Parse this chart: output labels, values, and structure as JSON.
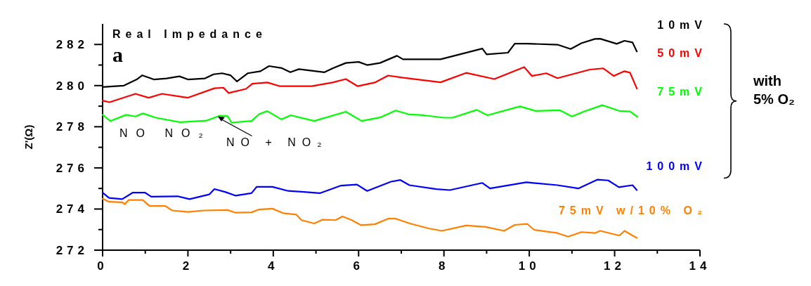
{
  "chart_data": {
    "type": "line",
    "title": "Real Impedance",
    "ylabel": "Z'(Ω)",
    "xlim": [
      0,
      14
    ],
    "xticks": [
      0,
      {
        "value": 1,
        "label": null
      },
      2,
      {
        "value": 3,
        "label": null
      },
      4,
      {
        "value": 5,
        "label": null
      },
      6,
      {
        "value": 7,
        "label": null
      },
      8,
      {
        "value": 9,
        "label": null
      },
      10,
      {
        "value": 11,
        "label": null
      },
      12,
      {
        "value": 13,
        "label": null
      },
      14
    ],
    "ylim": [
      272,
      283
    ],
    "yticks": [
      272,
      {
        "value": 273,
        "label": null
      },
      274,
      {
        "value": 275,
        "label": null
      },
      276,
      {
        "value": 277,
        "label": null
      },
      278,
      {
        "value": 279,
        "label": null
      },
      280,
      {
        "value": 281,
        "label": null
      },
      282
    ],
    "grid": false,
    "marker": "none",
    "line_style": "solid",
    "annotations": [
      "a",
      {
        "text": "NO NO₂"
      },
      {
        "text": "NO + NO₂",
        "x": 2.7,
        "y": 278.5
      },
      "with 5% O₂"
    ],
    "series": [
      {
        "name": "10mV",
        "color": "#000000",
        "x": [
          0,
          0.5,
          0.8,
          0.93,
          1.2,
          1.5,
          1.8,
          2.0,
          2.4,
          2.6,
          2.8,
          3.0,
          3.15,
          3.4,
          3.7,
          3.9,
          4.2,
          4.4,
          4.6,
          5.0,
          5.2,
          5.4,
          5.7,
          6.0,
          6.2,
          6.5,
          6.9,
          7.04,
          7.92,
          8.9,
          9.0,
          9.5,
          9.66,
          9.95,
          10.66,
          10.97,
          11.22,
          11.54,
          11.66,
          12.05,
          12.23,
          12.42,
          12.52
        ],
        "values": [
          279.93,
          280.0,
          280.3,
          280.5,
          280.3,
          280.35,
          280.45,
          280.3,
          280.35,
          280.55,
          280.6,
          280.5,
          280.2,
          280.6,
          280.7,
          280.95,
          280.85,
          280.65,
          280.8,
          280.7,
          280.65,
          280.85,
          281.1,
          281.15,
          281.0,
          281.1,
          281.45,
          281.28,
          281.28,
          281.8,
          281.52,
          281.6,
          282.04,
          282.04,
          281.99,
          281.78,
          282.06,
          282.27,
          282.28,
          282.03,
          282.18,
          282.1,
          281.66
        ]
      },
      {
        "name": "50mV",
        "color": "#ff0000",
        "x": [
          0,
          0.16,
          0.77,
          1.08,
          1.39,
          2.0,
          2.62,
          2.83,
          2.95,
          3.36,
          3.51,
          3.86,
          4.16,
          4.9,
          5.39,
          5.7,
          5.98,
          6.38,
          6.69,
          7.05,
          7.92,
          8.52,
          9.18,
          9.88,
          10.06,
          10.4,
          10.66,
          11.42,
          11.73,
          11.98,
          12.23,
          12.36,
          12.52
        ],
        "values": [
          279.27,
          279.19,
          279.6,
          279.41,
          279.6,
          279.41,
          279.87,
          279.9,
          279.64,
          279.84,
          280.09,
          280.15,
          279.97,
          279.97,
          280.15,
          280.32,
          279.97,
          280.15,
          280.49,
          280.38,
          280.16,
          280.62,
          280.32,
          280.9,
          280.47,
          280.6,
          280.36,
          280.78,
          280.84,
          280.47,
          280.7,
          280.63,
          279.86
        ]
      },
      {
        "name": "75mV",
        "color": "#00ff00",
        "x": [
          0,
          0.18,
          0.55,
          0.77,
          0.94,
          1.25,
          1.82,
          2.44,
          2.75,
          2.93,
          3.02,
          3.49,
          3.67,
          3.86,
          4.19,
          4.41,
          4.96,
          5.7,
          6.07,
          6.5,
          6.87,
          7.18,
          7.52,
          8.0,
          8.2,
          8.77,
          9.02,
          9.78,
          10.15,
          10.72,
          11.0,
          11.28,
          11.71,
          12.11,
          12.36,
          12.53
        ],
        "values": [
          278.58,
          278.28,
          278.58,
          278.5,
          278.65,
          278.44,
          278.22,
          278.3,
          278.54,
          278.51,
          278.2,
          278.28,
          278.62,
          278.76,
          278.36,
          278.56,
          278.28,
          278.73,
          278.28,
          278.45,
          278.79,
          278.6,
          278.56,
          278.44,
          278.44,
          278.82,
          278.56,
          278.99,
          278.77,
          278.8,
          278.5,
          278.74,
          279.05,
          278.77,
          278.74,
          278.49
        ]
      },
      {
        "name": "100mV",
        "color": "#0000ff",
        "x": [
          0,
          0.15,
          0.46,
          0.71,
          0.99,
          1.14,
          1.76,
          2.04,
          2.5,
          2.62,
          2.87,
          3.12,
          3.49,
          3.61,
          3.98,
          4.35,
          4.72,
          5.09,
          5.59,
          5.96,
          6.2,
          6.76,
          6.98,
          7.19,
          7.82,
          8.14,
          8.9,
          9.08,
          9.93,
          10.66,
          11.15,
          11.6,
          11.85,
          12.1,
          12.42,
          12.52
        ],
        "values": [
          274.8,
          274.54,
          274.48,
          274.8,
          274.8,
          274.6,
          274.62,
          274.48,
          274.71,
          274.97,
          274.83,
          274.65,
          274.77,
          275.08,
          275.08,
          274.88,
          274.83,
          274.77,
          275.14,
          275.19,
          274.88,
          275.33,
          275.41,
          275.16,
          274.97,
          274.92,
          275.27,
          275.0,
          275.3,
          275.16,
          275.0,
          275.43,
          275.39,
          275.06,
          275.16,
          274.92
        ]
      },
      {
        "name": "75mV w/10% O₂",
        "color": "#ff8000",
        "x": [
          0,
          0.15,
          0.46,
          0.52,
          0.61,
          0.94,
          1.1,
          1.47,
          1.63,
          2.0,
          2.37,
          2.93,
          3.12,
          3.49,
          3.67,
          3.98,
          4.23,
          4.54,
          4.66,
          4.96,
          5.15,
          5.46,
          5.62,
          5.84,
          6.05,
          6.38,
          6.69,
          6.87,
          7.2,
          7.64,
          7.95,
          8.52,
          8.97,
          9.41,
          9.66,
          9.95,
          10.11,
          10.66,
          10.91,
          11.22,
          11.54,
          11.66,
          12.11,
          12.23,
          12.42,
          12.52
        ],
        "values": [
          274.5,
          274.35,
          274.33,
          274.23,
          274.44,
          274.44,
          274.15,
          274.15,
          273.93,
          273.86,
          273.93,
          273.95,
          273.82,
          273.84,
          273.98,
          274.02,
          273.8,
          273.73,
          273.46,
          273.3,
          273.48,
          273.46,
          273.64,
          273.46,
          273.22,
          273.26,
          273.53,
          273.53,
          273.3,
          273.06,
          272.94,
          273.2,
          273.13,
          272.94,
          273.23,
          273.28,
          272.99,
          272.83,
          272.66,
          272.88,
          272.83,
          272.94,
          272.71,
          272.94,
          272.71,
          272.6
        ]
      }
    ]
  }
}
